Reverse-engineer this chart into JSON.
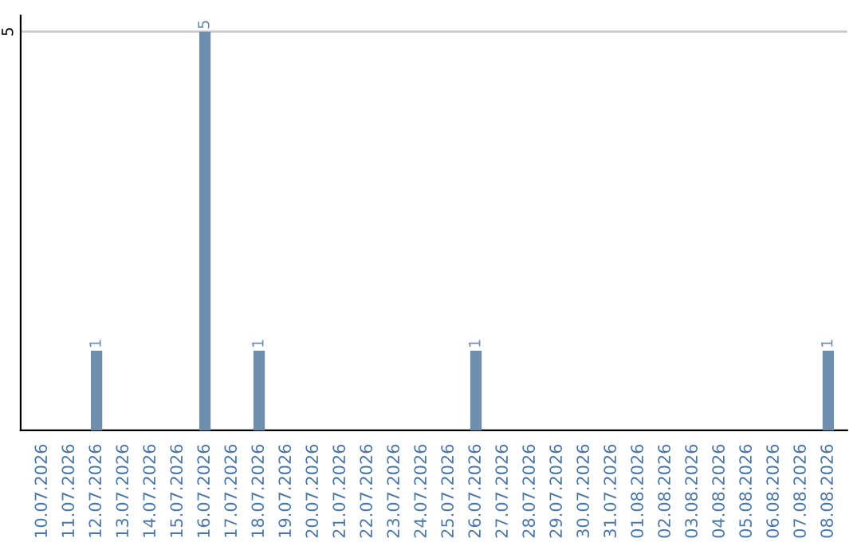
{
  "chart_data": {
    "type": "bar",
    "categories": [
      "10.07.2026",
      "11.07.2026",
      "12.07.2026",
      "13.07.2026",
      "14.07.2026",
      "15.07.2026",
      "16.07.2026",
      "17.07.2026",
      "18.07.2026",
      "19.07.2026",
      "20.07.2026",
      "21.07.2026",
      "22.07.2026",
      "23.07.2026",
      "24.07.2026",
      "25.07.2026",
      "26.07.2026",
      "27.07.2026",
      "28.07.2026",
      "29.07.2026",
      "30.07.2026",
      "31.07.2026",
      "01.08.2026",
      "02.08.2026",
      "03.08.2026",
      "04.08.2026",
      "05.08.2026",
      "06.08.2026",
      "07.08.2026",
      "08.08.2026"
    ],
    "values": [
      0,
      0,
      1,
      0,
      0,
      0,
      5,
      0,
      1,
      0,
      0,
      0,
      0,
      0,
      0,
      0,
      1,
      0,
      0,
      0,
      0,
      0,
      0,
      0,
      0,
      0,
      0,
      0,
      0,
      1
    ],
    "value_labels": [
      null,
      null,
      "1",
      null,
      null,
      null,
      "5",
      null,
      "1",
      null,
      null,
      null,
      null,
      null,
      null,
      null,
      "1",
      null,
      null,
      null,
      null,
      null,
      null,
      null,
      null,
      null,
      null,
      null,
      null,
      "1"
    ],
    "color": "#6d8fad",
    "ylim": [
      0,
      5.2
    ],
    "yticks": [
      5
    ],
    "grid": "y"
  }
}
